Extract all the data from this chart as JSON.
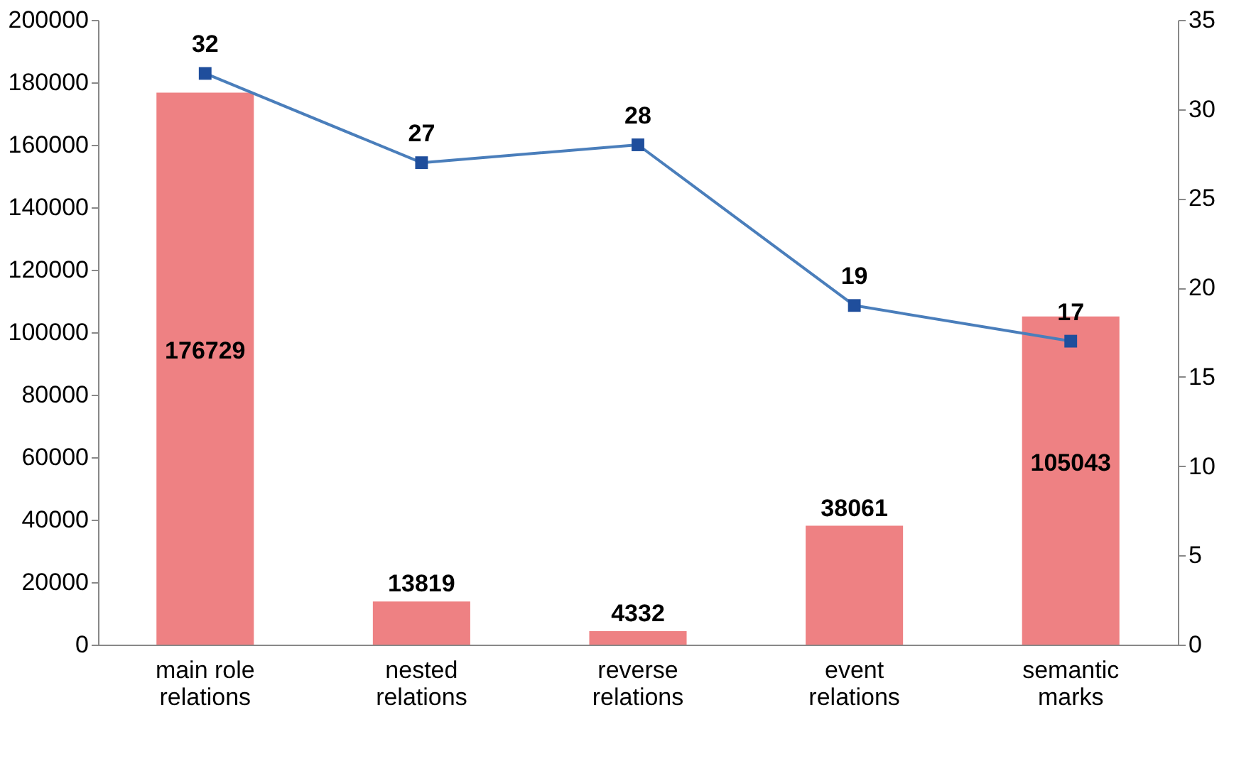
{
  "chart_data": {
    "type": "bar",
    "categories": [
      "main role relations",
      "nested relations",
      "reverse relations",
      "event relations",
      "semantic marks"
    ],
    "series": [
      {
        "color": "#e8575a",
        "values": [
          176729,
          13819,
          4332,
          38061,
          105043
        ]
      },
      {
        "type": "line",
        "axis": "y2",
        "color": "#4a7ebb",
        "values": [
          32,
          27,
          28,
          19,
          17
        ]
      }
    ],
    "ylim": [
      0,
      200000
    ],
    "yticks": [
      0,
      20000,
      40000,
      60000,
      80000,
      100000,
      120000,
      140000,
      160000,
      180000,
      200000
    ],
    "y2lim": [
      0,
      35
    ],
    "y2ticks": [
      0,
      5,
      10,
      15,
      20,
      25,
      30,
      35
    ],
    "marker": "square",
    "data_labels": true,
    "grid": false,
    "legend": false
  }
}
